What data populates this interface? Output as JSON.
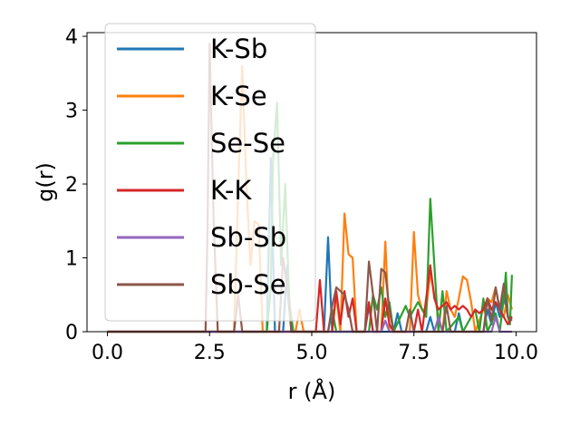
{
  "chart_data": {
    "type": "line",
    "xlabel": "r (Å)",
    "ylabel": "g(r)",
    "xlim": [
      -0.5,
      10.5
    ],
    "ylim": [
      0,
      4.05
    ],
    "xticks": [
      0.0,
      2.5,
      5.0,
      7.5,
      10.0
    ],
    "xtick_labels": [
      "0.0",
      "2.5",
      "5.0",
      "7.5",
      "10.0"
    ],
    "yticks": [
      0,
      1,
      2,
      3,
      4
    ],
    "ytick_labels": [
      "0",
      "1",
      "2",
      "3",
      "4"
    ],
    "grid": false,
    "legend_position": "upper-left",
    "series": [
      {
        "name": "K-Sb",
        "color": "#1f77b4",
        "points": [
          [
            0,
            0
          ],
          [
            3.9,
            0
          ],
          [
            4.0,
            2.35
          ],
          [
            4.1,
            0
          ],
          [
            4.3,
            0
          ],
          [
            4.4,
            0.9
          ],
          [
            4.5,
            0
          ],
          [
            5.3,
            0
          ],
          [
            5.4,
            1.28
          ],
          [
            5.5,
            0
          ],
          [
            6.3,
            0
          ],
          [
            6.4,
            0.35
          ],
          [
            6.5,
            0
          ],
          [
            7.0,
            0
          ],
          [
            7.1,
            0.25
          ],
          [
            7.2,
            0
          ],
          [
            7.8,
            0
          ],
          [
            7.9,
            0.2
          ],
          [
            8.0,
            0
          ],
          [
            8.5,
            0
          ],
          [
            8.6,
            0.25
          ],
          [
            8.7,
            0
          ],
          [
            9.2,
            0
          ],
          [
            9.3,
            0.3
          ],
          [
            9.4,
            0.1
          ],
          [
            9.5,
            0.4
          ],
          [
            9.6,
            0.2
          ],
          [
            9.7,
            0.5
          ],
          [
            9.8,
            0.2
          ],
          [
            9.9,
            0.2
          ]
        ]
      },
      {
        "name": "K-Se",
        "color": "#ff7f0e",
        "points": [
          [
            0,
            0
          ],
          [
            3.1,
            0
          ],
          [
            3.2,
            1.9
          ],
          [
            3.3,
            3.6
          ],
          [
            3.4,
            2.0
          ],
          [
            3.5,
            0.9
          ],
          [
            3.6,
            1.5
          ],
          [
            3.7,
            1.45
          ],
          [
            3.8,
            0
          ],
          [
            4.6,
            0
          ],
          [
            4.7,
            0.3
          ],
          [
            4.8,
            0
          ],
          [
            5.5,
            0
          ],
          [
            5.6,
            0.5
          ],
          [
            5.7,
            0
          ],
          [
            5.8,
            1.6
          ],
          [
            5.9,
            1.05
          ],
          [
            6.0,
            1.0
          ],
          [
            6.1,
            0
          ],
          [
            6.7,
            0
          ],
          [
            6.8,
            1.22
          ],
          [
            6.9,
            0
          ],
          [
            7.4,
            0
          ],
          [
            7.5,
            1.35
          ],
          [
            7.6,
            0.5
          ],
          [
            7.7,
            0.3
          ],
          [
            7.8,
            0.3
          ],
          [
            7.9,
            0.8
          ],
          [
            8.0,
            0.5
          ],
          [
            8.1,
            0.2
          ],
          [
            8.2,
            0
          ],
          [
            8.3,
            0.55
          ],
          [
            8.4,
            0.3
          ],
          [
            8.5,
            0.2
          ],
          [
            8.6,
            0.45
          ],
          [
            8.7,
            0.75
          ],
          [
            8.8,
            0.7
          ],
          [
            8.9,
            0.4
          ],
          [
            9.0,
            0
          ],
          [
            9.2,
            0.3
          ],
          [
            9.3,
            0.45
          ],
          [
            9.4,
            0.4
          ],
          [
            9.5,
            0.6
          ],
          [
            9.6,
            0.3
          ],
          [
            9.7,
            0.2
          ],
          [
            9.8,
            0.5
          ],
          [
            9.9,
            0.3
          ]
        ]
      },
      {
        "name": "Se-Se",
        "color": "#2ca02c",
        "points": [
          [
            0,
            0
          ],
          [
            3.9,
            0
          ],
          [
            4.0,
            0.6
          ],
          [
            4.05,
            2.3
          ],
          [
            4.15,
            3.1
          ],
          [
            4.25,
            0.9
          ],
          [
            4.35,
            2.0
          ],
          [
            4.45,
            0.4
          ],
          [
            4.55,
            0
          ],
          [
            5.4,
            0
          ],
          [
            5.5,
            0.3
          ],
          [
            5.6,
            0
          ],
          [
            6.4,
            0
          ],
          [
            6.5,
            0.5
          ],
          [
            6.6,
            0.3
          ],
          [
            6.7,
            0.6
          ],
          [
            6.8,
            0.2
          ],
          [
            6.9,
            0.4
          ],
          [
            7.0,
            0
          ],
          [
            7.3,
            0.35
          ],
          [
            7.4,
            0.2
          ],
          [
            7.6,
            0.4
          ],
          [
            7.8,
            0.2
          ],
          [
            7.9,
            1.8
          ],
          [
            8.0,
            0.9
          ],
          [
            8.1,
            0
          ],
          [
            8.2,
            0.55
          ],
          [
            8.3,
            0
          ],
          [
            8.6,
            0.2
          ],
          [
            8.7,
            0
          ],
          [
            9.0,
            0.3
          ],
          [
            9.1,
            0
          ],
          [
            9.2,
            0.45
          ],
          [
            9.3,
            0
          ],
          [
            9.5,
            0.25
          ],
          [
            9.6,
            0
          ],
          [
            9.7,
            0.45
          ],
          [
            9.75,
            0.8
          ],
          [
            9.8,
            0.2
          ],
          [
            9.85,
            0.1
          ],
          [
            9.9,
            0.77
          ]
        ]
      },
      {
        "name": "K-K",
        "color": "#d62728",
        "points": [
          [
            0,
            0
          ],
          [
            5.1,
            0
          ],
          [
            5.2,
            0.7
          ],
          [
            5.3,
            0
          ],
          [
            5.5,
            0
          ],
          [
            5.6,
            0.55
          ],
          [
            5.7,
            0.1
          ],
          [
            5.8,
            0.55
          ],
          [
            5.9,
            0.2
          ],
          [
            6.0,
            0.45
          ],
          [
            6.1,
            0
          ],
          [
            6.3,
            0
          ],
          [
            6.4,
            0.4
          ],
          [
            6.5,
            0
          ],
          [
            6.7,
            0
          ],
          [
            6.8,
            0.45
          ],
          [
            6.9,
            0.1
          ],
          [
            7.0,
            0
          ],
          [
            7.5,
            0
          ],
          [
            7.6,
            0.3
          ],
          [
            7.7,
            0
          ],
          [
            7.9,
            0.9
          ],
          [
            8.0,
            0.45
          ],
          [
            8.1,
            0.3
          ],
          [
            8.2,
            0.35
          ],
          [
            8.3,
            0.4
          ],
          [
            8.4,
            0.3
          ],
          [
            8.5,
            0.35
          ],
          [
            8.6,
            0.3
          ],
          [
            8.7,
            0.35
          ],
          [
            8.8,
            0.3
          ],
          [
            8.9,
            0.2
          ],
          [
            9.0,
            0.3
          ],
          [
            9.1,
            0.25
          ],
          [
            9.2,
            0.3
          ],
          [
            9.3,
            0.45
          ],
          [
            9.4,
            0.3
          ],
          [
            9.5,
            0.4
          ],
          [
            9.6,
            0.3
          ],
          [
            9.7,
            0.2
          ],
          [
            9.8,
            0.1
          ],
          [
            9.9,
            0.2
          ]
        ]
      },
      {
        "name": "Sb-Sb",
        "color": "#9467bd",
        "points": [
          [
            0,
            0
          ],
          [
            6.7,
            0
          ],
          [
            6.8,
            0.15
          ],
          [
            6.9,
            0
          ],
          [
            8.0,
            0
          ],
          [
            8.1,
            0.2
          ],
          [
            8.2,
            0
          ],
          [
            9.4,
            0
          ],
          [
            9.5,
            0.2
          ],
          [
            9.6,
            0
          ],
          [
            9.9,
            0
          ]
        ]
      },
      {
        "name": "Sb-Se",
        "color": "#8c564b",
        "points": [
          [
            0,
            0
          ],
          [
            2.4,
            0
          ],
          [
            2.45,
            1.4
          ],
          [
            2.5,
            3.9
          ],
          [
            2.6,
            1.5
          ],
          [
            2.7,
            0
          ],
          [
            3.1,
            0
          ],
          [
            3.2,
            0.5
          ],
          [
            3.3,
            0
          ],
          [
            4.2,
            0
          ],
          [
            4.3,
            1.0
          ],
          [
            4.4,
            0.6
          ],
          [
            4.5,
            0
          ],
          [
            5.4,
            0
          ],
          [
            5.5,
            0.35
          ],
          [
            5.6,
            0.6
          ],
          [
            5.7,
            0.55
          ],
          [
            5.8,
            0.5
          ],
          [
            5.9,
            0.3
          ],
          [
            6.0,
            0
          ],
          [
            6.3,
            0
          ],
          [
            6.4,
            0.95
          ],
          [
            6.5,
            0.5
          ],
          [
            6.6,
            0
          ],
          [
            6.7,
            0.85
          ],
          [
            6.8,
            0.8
          ],
          [
            6.9,
            0.3
          ],
          [
            7.0,
            0
          ],
          [
            7.3,
            0
          ],
          [
            7.4,
            0.3
          ],
          [
            7.5,
            0
          ],
          [
            8.2,
            0
          ],
          [
            8.3,
            0.35
          ],
          [
            8.4,
            0
          ],
          [
            9.2,
            0
          ],
          [
            9.3,
            0.45
          ],
          [
            9.4,
            0.15
          ],
          [
            9.5,
            0.6
          ],
          [
            9.6,
            0.3
          ],
          [
            9.7,
            0.65
          ],
          [
            9.8,
            0.2
          ],
          [
            9.9,
            0.15
          ]
        ]
      }
    ]
  }
}
